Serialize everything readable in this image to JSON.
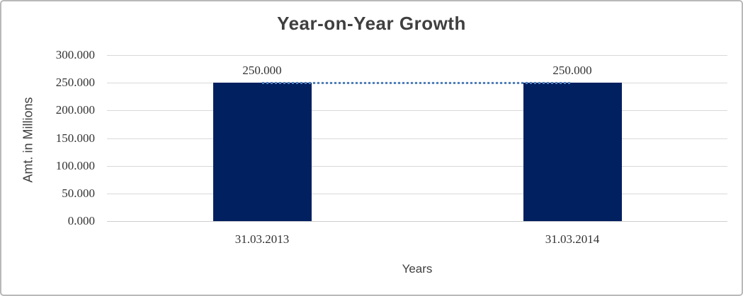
{
  "colors": {
    "bar": "#002060",
    "connector": "#4f81bd",
    "gridline": "#d9d9d9",
    "axis_line": "#cfcfcf",
    "border": "#b9b9b9",
    "text": "#3f3f3f"
  },
  "chart_data": {
    "type": "bar",
    "title": "Year-on-Year Growth",
    "xlabel": "Years",
    "ylabel": "Amt. in Millions",
    "categories": [
      "31.03.2013",
      "31.03.2014"
    ],
    "series": [
      {
        "name": "Amount",
        "values": [
          250,
          250
        ],
        "data_labels": [
          "250.000",
          "250.000"
        ]
      }
    ],
    "ylim": [
      0,
      300
    ],
    "ytick_step": 50,
    "ytick_labels": [
      "0.000",
      "50.000",
      "100.000",
      "150.000",
      "200.000",
      "250.000",
      "300.000"
    ],
    "grid": true,
    "legend": false,
    "connector_line": {
      "style": "dotted",
      "from_category": 0,
      "to_category": 1,
      "at_value": 250
    }
  }
}
